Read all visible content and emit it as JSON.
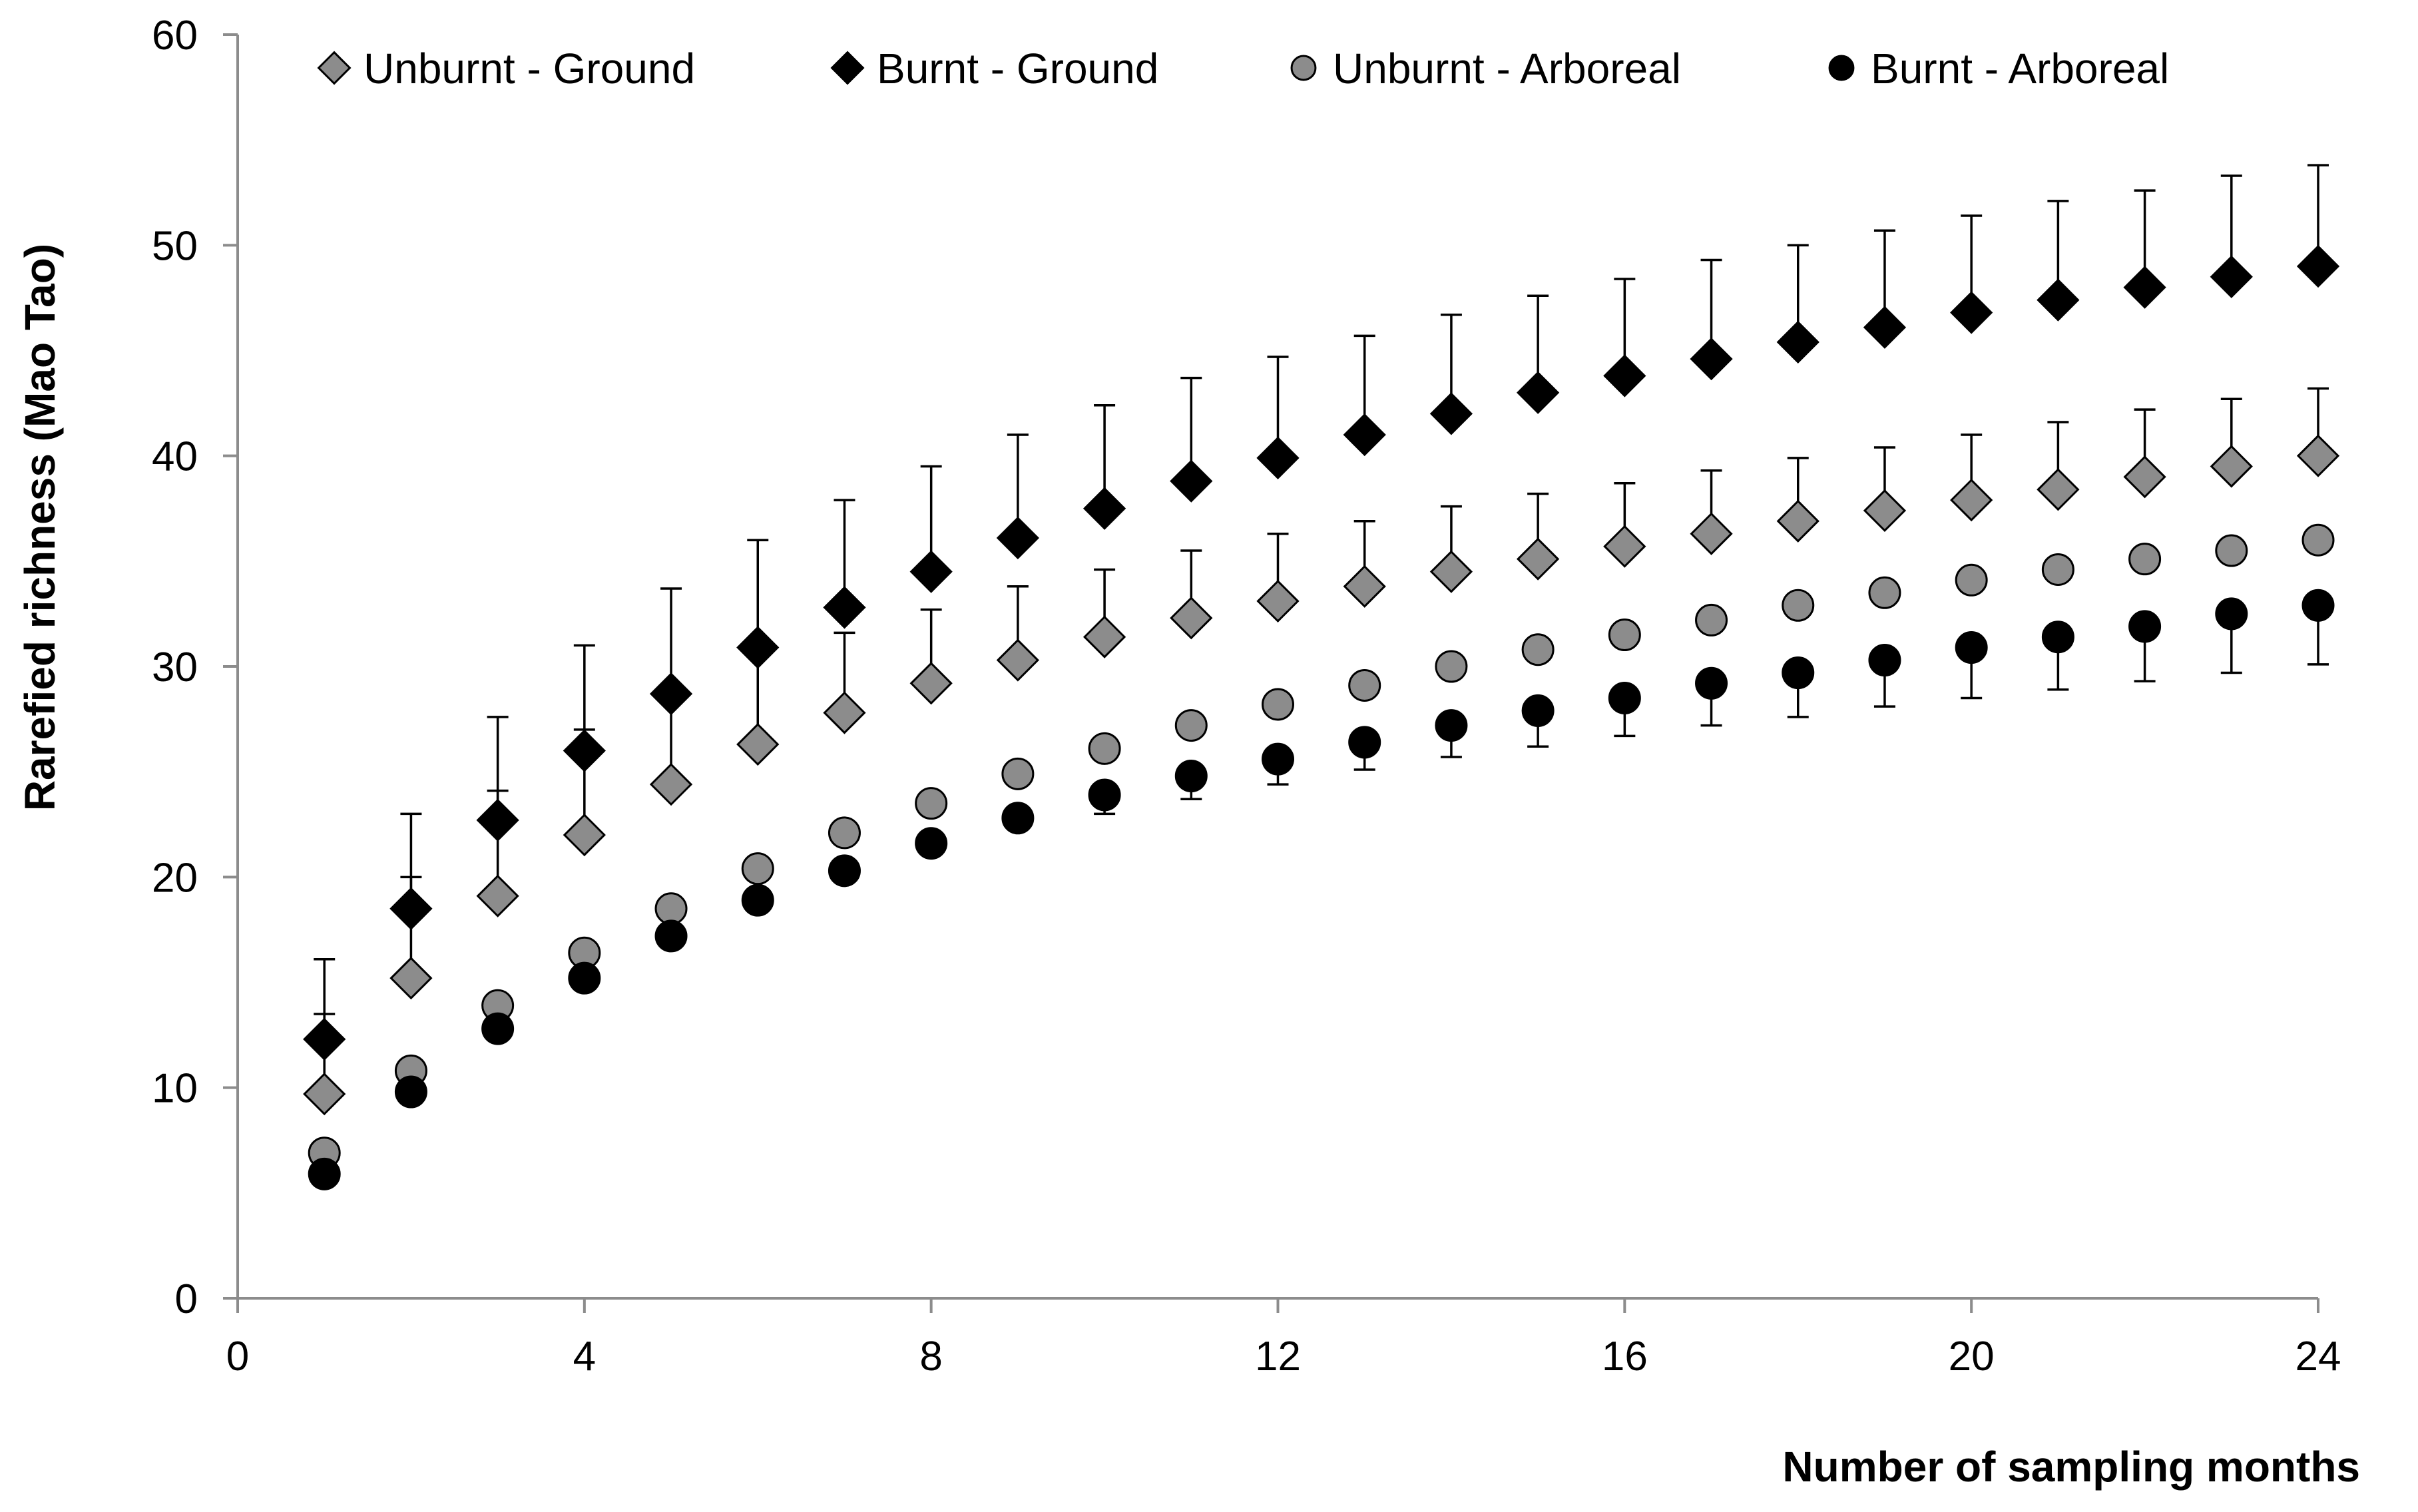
{
  "chart_data": {
    "type": "scatter",
    "title": "",
    "xlabel": "Number of sampling months",
    "ylabel": "Rarefied  richness (Mao Tao)",
    "xlim": [
      0,
      24
    ],
    "ylim": [
      0,
      60
    ],
    "x_ticks": [
      0,
      4,
      8,
      12,
      16,
      20,
      24
    ],
    "y_ticks": [
      0,
      10,
      20,
      30,
      40,
      50,
      60
    ],
    "grid": false,
    "legend_position": "top",
    "x": [
      1,
      2,
      3,
      4,
      5,
      6,
      7,
      8,
      9,
      10,
      11,
      12,
      13,
      14,
      15,
      16,
      17,
      18,
      19,
      20,
      21,
      22,
      23,
      24
    ],
    "series": [
      {
        "name": "Unburnt - Ground",
        "marker": "diamond",
        "color": "#8c8c8c",
        "values": [
          9.7,
          15.2,
          19.1,
          22.0,
          24.4,
          26.3,
          27.8,
          29.2,
          30.3,
          31.4,
          32.3,
          33.1,
          33.8,
          34.5,
          35.1,
          35.7,
          36.3,
          36.9,
          37.4,
          37.9,
          38.4,
          39.0,
          39.5,
          40.0
        ],
        "error": [
          3.8,
          4.8,
          5.0,
          5.0,
          4.6,
          4.3,
          3.8,
          3.5,
          3.5,
          3.2,
          3.2,
          3.2,
          3.1,
          3.1,
          3.1,
          3.0,
          3.0,
          3.0,
          3.0,
          3.1,
          3.2,
          3.2,
          3.2,
          3.2
        ],
        "error_side": "up"
      },
      {
        "name": "Burnt - Ground",
        "marker": "diamond",
        "color": "#000000",
        "values": [
          12.3,
          18.5,
          22.7,
          26.0,
          28.7,
          30.9,
          32.8,
          34.5,
          36.1,
          37.5,
          38.8,
          39.9,
          41.0,
          42.0,
          43.0,
          43.8,
          44.6,
          45.4,
          46.1,
          46.8,
          47.4,
          48.0,
          48.5,
          49.0
        ],
        "error": [
          3.8,
          4.5,
          4.9,
          5.0,
          5.0,
          5.1,
          5.1,
          5.0,
          4.9,
          4.9,
          4.9,
          4.8,
          4.7,
          4.7,
          4.6,
          4.6,
          4.7,
          4.6,
          4.6,
          4.6,
          4.7,
          4.6,
          4.8,
          4.8
        ],
        "error_side": "up"
      },
      {
        "name": "Unburnt - Arboreal",
        "marker": "circle",
        "color": "#8c8c8c",
        "values": [
          6.9,
          10.8,
          13.9,
          16.4,
          18.5,
          20.4,
          22.1,
          23.5,
          24.9,
          26.1,
          27.2,
          28.2,
          29.1,
          30.0,
          30.8,
          31.5,
          32.2,
          32.9,
          33.5,
          34.1,
          34.6,
          35.1,
          35.5,
          36.0
        ],
        "error": [],
        "error_side": "none"
      },
      {
        "name": "Burnt - Arboreal",
        "marker": "circle",
        "color": "#000000",
        "values": [
          5.9,
          9.8,
          12.8,
          15.2,
          17.2,
          18.9,
          20.3,
          21.6,
          22.8,
          23.9,
          24.8,
          25.6,
          26.4,
          27.2,
          27.9,
          28.5,
          29.2,
          29.7,
          30.3,
          30.9,
          31.4,
          31.9,
          32.5,
          32.9
        ],
        "error": [
          0,
          0,
          0,
          0,
          0,
          0,
          0,
          0,
          0,
          0.9,
          1.1,
          1.2,
          1.3,
          1.5,
          1.7,
          1.8,
          2.0,
          2.1,
          2.2,
          2.4,
          2.5,
          2.6,
          2.8,
          2.8
        ],
        "error_side": "down"
      }
    ]
  }
}
